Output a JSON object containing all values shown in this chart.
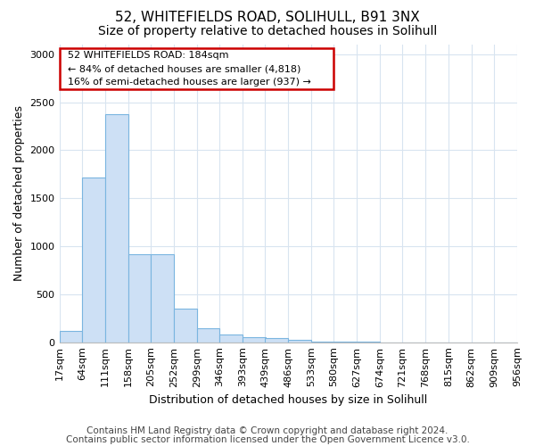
{
  "title1": "52, WHITEFIELDS ROAD, SOLIHULL, B91 3NX",
  "title2": "Size of property relative to detached houses in Solihull",
  "xlabel": "Distribution of detached houses by size in Solihull",
  "ylabel": "Number of detached properties",
  "footer1": "Contains HM Land Registry data © Crown copyright and database right 2024.",
  "footer2": "Contains public sector information licensed under the Open Government Licence v3.0.",
  "annotation_line1": "52 WHITEFIELDS ROAD: 184sqm",
  "annotation_line2": "← 84% of detached houses are smaller (4,818)",
  "annotation_line3": "16% of semi-detached houses are larger (937) →",
  "bar_edges": [
    17,
    64,
    111,
    158,
    205,
    252,
    299,
    346,
    393,
    439,
    486,
    533,
    580,
    627,
    674,
    721,
    768,
    815,
    862,
    909,
    956
  ],
  "bar_values": [
    115,
    1720,
    2380,
    920,
    920,
    350,
    150,
    80,
    50,
    40,
    25,
    5,
    5,
    5,
    0,
    0,
    0,
    0,
    0,
    0
  ],
  "bar_color": "#cde0f5",
  "bar_edge_color": "#7ab5e0",
  "bar_linewidth": 0.8,
  "ylim": [
    0,
    3100
  ],
  "yticks": [
    0,
    500,
    1000,
    1500,
    2000,
    2500,
    3000
  ],
  "bg_color": "#ffffff",
  "plot_bg_color": "#ffffff",
  "grid_color": "#d8e4f0",
  "ann_box_color": "#cc0000",
  "title1_fontsize": 11,
  "title2_fontsize": 10,
  "xlabel_fontsize": 9,
  "ylabel_fontsize": 9,
  "tick_fontsize": 8,
  "ann_fontsize": 8,
  "footer_fontsize": 7.5
}
